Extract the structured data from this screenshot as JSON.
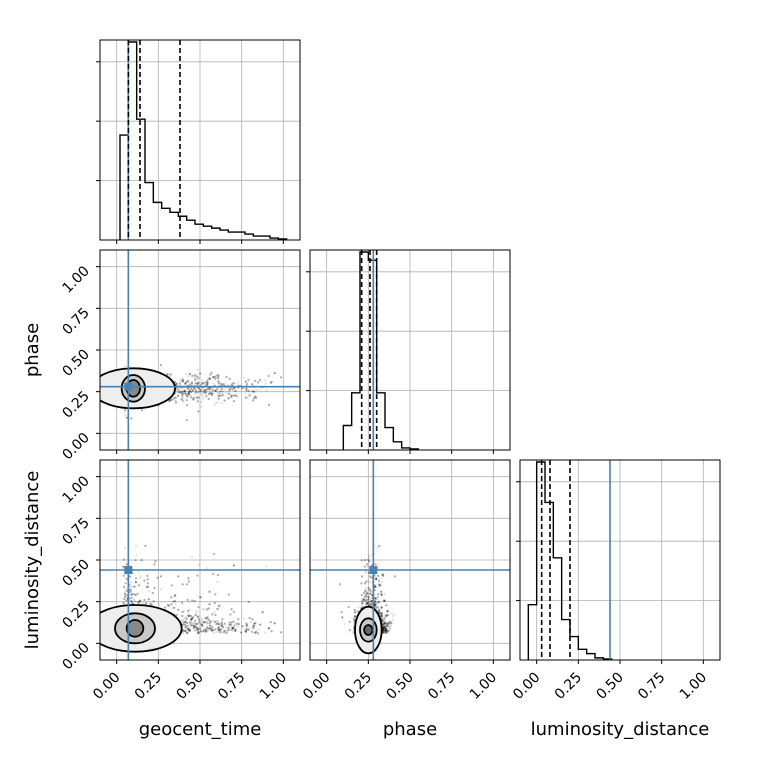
{
  "chart_data": {
    "type": "corner",
    "parameters": [
      "geocent_time",
      "phase",
      "luminosity_distance"
    ],
    "axis_range": [
      -0.1,
      1.1
    ],
    "ticks": [
      0.0,
      0.25,
      0.5,
      0.75,
      1.0
    ],
    "tick_labels": [
      "0.00",
      "0.25",
      "0.50",
      "0.75",
      "1.00"
    ],
    "grid": true,
    "truth_color": "#4682b4",
    "contour_color": "#000000",
    "truths": {
      "geocent_time": 0.07,
      "phase": 0.28,
      "luminosity_distance": 0.44
    },
    "quantiles": {
      "geocent_time": [
        0.07,
        0.14,
        0.38
      ],
      "phase": [
        0.21,
        0.26,
        0.3
      ],
      "luminosity_distance": [
        0.03,
        0.08,
        0.2
      ]
    },
    "histograms": {
      "geocent_time": {
        "edges": [
          0.02,
          0.07,
          0.12,
          0.17,
          0.22,
          0.27,
          0.32,
          0.37,
          0.42,
          0.47,
          0.52,
          0.57,
          0.62,
          0.67,
          0.72,
          0.77,
          0.82,
          0.87,
          0.92,
          0.97,
          1.02
        ],
        "counts": [
          0.53,
          1.0,
          0.61,
          0.29,
          0.19,
          0.16,
          0.14,
          0.12,
          0.1,
          0.08,
          0.07,
          0.06,
          0.05,
          0.04,
          0.04,
          0.03,
          0.02,
          0.02,
          0.01,
          0.005
        ]
      },
      "phase": {
        "edges": [
          0.1,
          0.15,
          0.2,
          0.25,
          0.3,
          0.35,
          0.4,
          0.45,
          0.5,
          0.55
        ],
        "counts": [
          0.12,
          0.28,
          0.97,
          0.93,
          0.28,
          0.11,
          0.04,
          0.01,
          0.005
        ]
      },
      "luminosity_distance": {
        "edges": [
          -0.05,
          0.0,
          0.05,
          0.1,
          0.15,
          0.2,
          0.25,
          0.3,
          0.35,
          0.4,
          0.45
        ],
        "counts": [
          0.26,
          0.93,
          0.74,
          0.48,
          0.19,
          0.11,
          0.05,
          0.03,
          0.01,
          0.005
        ]
      }
    },
    "contours_2d": {
      "phase_vs_geocent_time": {
        "center": [
          0.1,
          0.27
        ],
        "levels": [
          {
            "rx": 0.25,
            "ry": 0.12,
            "fill": "#eeeeee"
          },
          {
            "rx": 0.07,
            "ry": 0.08,
            "fill": "#c8c8c8"
          },
          {
            "rx": 0.04,
            "ry": 0.05,
            "fill": "#888888"
          }
        ]
      },
      "luminosity_distance_vs_geocent_time": {
        "center": [
          0.11,
          0.09
        ],
        "levels": [
          {
            "rx": 0.28,
            "ry": 0.14,
            "fill": "#eeeeee"
          },
          {
            "rx": 0.12,
            "ry": 0.09,
            "fill": "#c8c8c8"
          },
          {
            "rx": 0.05,
            "ry": 0.05,
            "fill": "#888888"
          }
        ]
      },
      "luminosity_distance_vs_phase": {
        "center": [
          0.25,
          0.08
        ],
        "levels": [
          {
            "rx": 0.08,
            "ry": 0.14,
            "fill": "#eeeeee"
          },
          {
            "rx": 0.05,
            "ry": 0.07,
            "fill": "#c8c8c8"
          },
          {
            "rx": 0.025,
            "ry": 0.03,
            "fill": "#666666"
          }
        ]
      }
    }
  }
}
